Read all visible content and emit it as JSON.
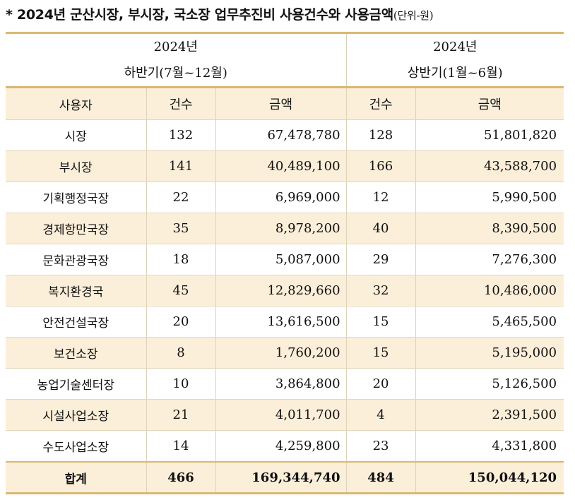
{
  "title": {
    "marker": "*",
    "text": "2024년 군산시장, 부시장, 국소장 업무추진비 사용건수와 사용금액",
    "unit": "(단위-원)"
  },
  "periods": {
    "left": {
      "year": "2024년",
      "half": "하반기(7월~12월)"
    },
    "right": {
      "year": "2024년",
      "half": "상반기(1월~6월)"
    }
  },
  "headers": {
    "user": "사용자",
    "count_left": "건수",
    "amount_left": "금액",
    "count_right": "건수",
    "amount_right": "금액"
  },
  "rows": [
    {
      "user": "시장",
      "h2_count": "132",
      "h2_amount": "67,478,780",
      "h1_count": "128",
      "h1_amount": "51,801,820"
    },
    {
      "user": "부시장",
      "h2_count": "141",
      "h2_amount": "40,489,100",
      "h1_count": "166",
      "h1_amount": "43,588,700"
    },
    {
      "user": "기획행정국장",
      "h2_count": "22",
      "h2_amount": "6,969,000",
      "h1_count": "12",
      "h1_amount": "5,990,500"
    },
    {
      "user": "경제항만국장",
      "h2_count": "35",
      "h2_amount": "8,978,200",
      "h1_count": "40",
      "h1_amount": "8,390,500"
    },
    {
      "user": "문화관광국장",
      "h2_count": "18",
      "h2_amount": "5,087,000",
      "h1_count": "29",
      "h1_amount": "7,276,300"
    },
    {
      "user": "복지환경국",
      "h2_count": "45",
      "h2_amount": "12,829,660",
      "h1_count": "32",
      "h1_amount": "10,486,000"
    },
    {
      "user": "안전건설국장",
      "h2_count": "20",
      "h2_amount": "13,616,500",
      "h1_count": "15",
      "h1_amount": "5,465,500"
    },
    {
      "user": "보건소장",
      "h2_count": "8",
      "h2_amount": "1,760,200",
      "h1_count": "15",
      "h1_amount": "5,195,000"
    },
    {
      "user": "농업기술센터장",
      "h2_count": "10",
      "h2_amount": "3,864,800",
      "h1_count": "20",
      "h1_amount": "5,126,500"
    },
    {
      "user": "시설사업소장",
      "h2_count": "21",
      "h2_amount": "4,011,700",
      "h1_count": "4",
      "h1_amount": "2,391,500"
    },
    {
      "user": "수도사업소장",
      "h2_count": "14",
      "h2_amount": "4,259,800",
      "h1_count": "23",
      "h1_amount": "4,331,800"
    }
  ],
  "total": {
    "user": "합계",
    "h2_count": "466",
    "h2_amount": "169,344,740",
    "h1_count": "484",
    "h1_amount": "150,044,120"
  }
}
